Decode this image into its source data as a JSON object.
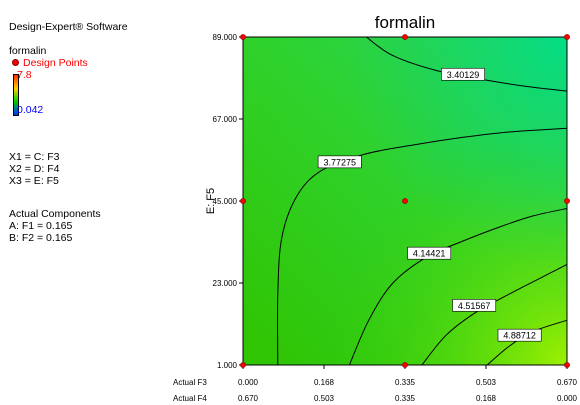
{
  "sidebar": {
    "app_title": "Design-Expert® Software",
    "response_name": "formalin",
    "design_points_label": "Design Points",
    "max_value": "7.8",
    "min_value": "0.042",
    "x1": "X1 = C: F3",
    "x2": "X2 = D: F4",
    "x3": "X3 = E: F5",
    "actual_components_title": "Actual Components",
    "actual_a": "A: F1 = 0.165",
    "actual_b": "B: F2 = 0.165"
  },
  "colors": {
    "design_point": "#ff0000",
    "max_label": "#ff0000",
    "min_label": "#0000ff",
    "contour_line": "#000000"
  },
  "chart_data": {
    "type": "contour",
    "title": "formalin",
    "ylabel": "E: F5",
    "x_row_labels": [
      "Actual F3",
      "Actual F4"
    ],
    "x_ticks_f3": [
      "0.000",
      "0.168",
      "0.335",
      "0.503",
      "0.670"
    ],
    "x_ticks_f4": [
      "0.670",
      "0.503",
      "0.335",
      "0.168",
      "0.000"
    ],
    "xlim": [
      0,
      0.67
    ],
    "ylim": [
      1,
      89
    ],
    "y_ticks": [
      {
        "value": 1,
        "label": "1.000"
      },
      {
        "value": 23,
        "label": "23.000"
      },
      {
        "value": 45,
        "label": "45.000"
      },
      {
        "value": 67,
        "label": "67.000"
      },
      {
        "value": 89,
        "label": "89.000"
      }
    ],
    "contours": [
      {
        "level": "3.40129",
        "points": [
          [
            0.255,
            89
          ],
          [
            0.31,
            84
          ],
          [
            0.4,
            80
          ],
          [
            0.5,
            77.5
          ],
          [
            0.6,
            75.5
          ],
          [
            0.67,
            74.5
          ]
        ],
        "label_at": [
          0.455,
          79
        ]
      },
      {
        "level": "3.77275",
        "points": [
          [
            0.072,
            1
          ],
          [
            0.072,
            20
          ],
          [
            0.08,
            35
          ],
          [
            0.11,
            46
          ],
          [
            0.16,
            53
          ],
          [
            0.25,
            57.5
          ],
          [
            0.35,
            60
          ],
          [
            0.45,
            62
          ],
          [
            0.55,
            63.5
          ],
          [
            0.67,
            64.5
          ]
        ],
        "label_at": [
          0.2,
          55.5
        ]
      },
      {
        "level": "4.14421",
        "points": [
          [
            0.22,
            1
          ],
          [
            0.26,
            13
          ],
          [
            0.31,
            23
          ],
          [
            0.38,
            30
          ],
          [
            0.45,
            34
          ],
          [
            0.53,
            38
          ],
          [
            0.6,
            41
          ],
          [
            0.67,
            43
          ]
        ],
        "label_at": [
          0.385,
          31
        ]
      },
      {
        "level": "4.51567",
        "points": [
          [
            0.37,
            1
          ],
          [
            0.42,
            9
          ],
          [
            0.48,
            15
          ],
          [
            0.55,
            20
          ],
          [
            0.61,
            24
          ],
          [
            0.67,
            28
          ]
        ],
        "label_at": [
          0.478,
          17
        ]
      },
      {
        "level": "4.88712",
        "points": [
          [
            0.505,
            1
          ],
          [
            0.55,
            6
          ],
          [
            0.6,
            10
          ],
          [
            0.67,
            13
          ]
        ],
        "label_at": [
          0.572,
          9
        ]
      }
    ],
    "design_points": [
      [
        0,
        89
      ],
      [
        0.335,
        89
      ],
      [
        0.67,
        89
      ],
      [
        0,
        45
      ],
      [
        0.335,
        45
      ],
      [
        0.67,
        45
      ],
      [
        0,
        1
      ],
      [
        0.335,
        1
      ],
      [
        0.67,
        1
      ]
    ]
  }
}
